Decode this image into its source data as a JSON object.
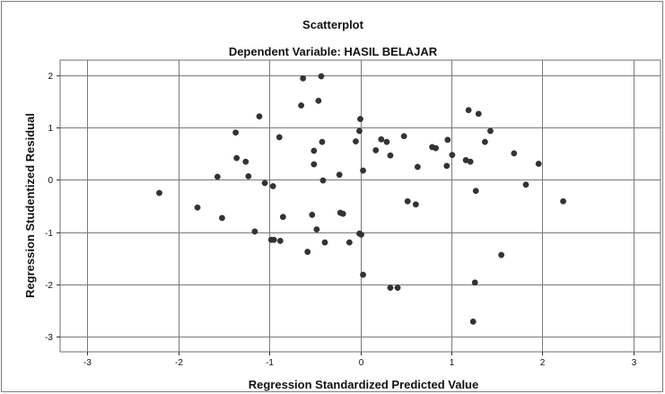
{
  "chart_data": {
    "type": "scatter",
    "title": "Scatterplot",
    "subtitle": "Dependent Variable: HASIL BELAJAR",
    "xlabel": "Regression Standardized Predicted Value",
    "ylabel": "Regression Studentized Residual",
    "xlim": [
      -3.3,
      3.3
    ],
    "ylim": [
      -3.3,
      2.3
    ],
    "xticks": [
      -3,
      -2,
      -1,
      0,
      1,
      2,
      3
    ],
    "yticks": [
      -3,
      -2,
      -1,
      0,
      1,
      2
    ],
    "grid": true,
    "point_color": "#333333",
    "points": [
      {
        "x": -2.21,
        "y": -0.25
      },
      {
        "x": -1.79,
        "y": -0.53
      },
      {
        "x": -1.57,
        "y": 0.06
      },
      {
        "x": -1.52,
        "y": -0.73
      },
      {
        "x": -1.37,
        "y": 0.91
      },
      {
        "x": -1.36,
        "y": 0.42
      },
      {
        "x": -1.26,
        "y": 0.35
      },
      {
        "x": -1.23,
        "y": 0.07
      },
      {
        "x": -1.16,
        "y": -0.99
      },
      {
        "x": -1.11,
        "y": 1.22
      },
      {
        "x": -1.05,
        "y": -0.06
      },
      {
        "x": -0.98,
        "y": -1.15
      },
      {
        "x": -0.96,
        "y": -0.12
      },
      {
        "x": -0.95,
        "y": -1.15
      },
      {
        "x": -0.89,
        "y": 0.82
      },
      {
        "x": -0.88,
        "y": -1.17
      },
      {
        "x": -0.85,
        "y": -0.71
      },
      {
        "x": -0.65,
        "y": 1.43
      },
      {
        "x": -0.63,
        "y": 1.95
      },
      {
        "x": -0.58,
        "y": -1.38
      },
      {
        "x": -0.53,
        "y": -0.67
      },
      {
        "x": -0.51,
        "y": 0.3
      },
      {
        "x": -0.51,
        "y": 0.56
      },
      {
        "x": -0.48,
        "y": -0.95
      },
      {
        "x": -0.46,
        "y": 1.52
      },
      {
        "x": -0.43,
        "y": 1.99
      },
      {
        "x": -0.42,
        "y": 0.73
      },
      {
        "x": -0.41,
        "y": -0.01
      },
      {
        "x": -0.39,
        "y": -1.2
      },
      {
        "x": -0.23,
        "y": 0.1
      },
      {
        "x": -0.22,
        "y": -0.63
      },
      {
        "x": -0.19,
        "y": -0.65
      },
      {
        "x": -0.12,
        "y": -1.2
      },
      {
        "x": -0.05,
        "y": 0.74
      },
      {
        "x": -0.01,
        "y": 0.94
      },
      {
        "x": -0.01,
        "y": -1.03
      },
      {
        "x": 0.0,
        "y": 1.17
      },
      {
        "x": 0.01,
        "y": -1.05
      },
      {
        "x": 0.03,
        "y": 0.18
      },
      {
        "x": 0.03,
        "y": -1.82
      },
      {
        "x": 0.17,
        "y": 0.57
      },
      {
        "x": 0.23,
        "y": 0.78
      },
      {
        "x": 0.29,
        "y": 0.73
      },
      {
        "x": 0.33,
        "y": -2.07
      },
      {
        "x": 0.33,
        "y": 0.47
      },
      {
        "x": 0.41,
        "y": -2.07
      },
      {
        "x": 0.48,
        "y": 0.84
      },
      {
        "x": 0.52,
        "y": -0.41
      },
      {
        "x": 0.61,
        "y": -0.47
      },
      {
        "x": 0.63,
        "y": 0.25
      },
      {
        "x": 0.79,
        "y": 0.63
      },
      {
        "x": 0.83,
        "y": 0.61
      },
      {
        "x": 0.95,
        "y": 0.27
      },
      {
        "x": 0.96,
        "y": 0.77
      },
      {
        "x": 1.01,
        "y": 0.48
      },
      {
        "x": 1.16,
        "y": 0.38
      },
      {
        "x": 1.19,
        "y": 1.34
      },
      {
        "x": 1.21,
        "y": 0.35
      },
      {
        "x": 1.24,
        "y": -2.72
      },
      {
        "x": 1.26,
        "y": -1.97
      },
      {
        "x": 1.27,
        "y": -0.21
      },
      {
        "x": 1.3,
        "y": 1.27
      },
      {
        "x": 1.37,
        "y": 0.73
      },
      {
        "x": 1.43,
        "y": 0.94
      },
      {
        "x": 1.55,
        "y": -1.44
      },
      {
        "x": 1.69,
        "y": 0.51
      },
      {
        "x": 1.82,
        "y": -0.09
      },
      {
        "x": 1.96,
        "y": 0.31
      },
      {
        "x": 2.23,
        "y": -0.41
      }
    ]
  }
}
